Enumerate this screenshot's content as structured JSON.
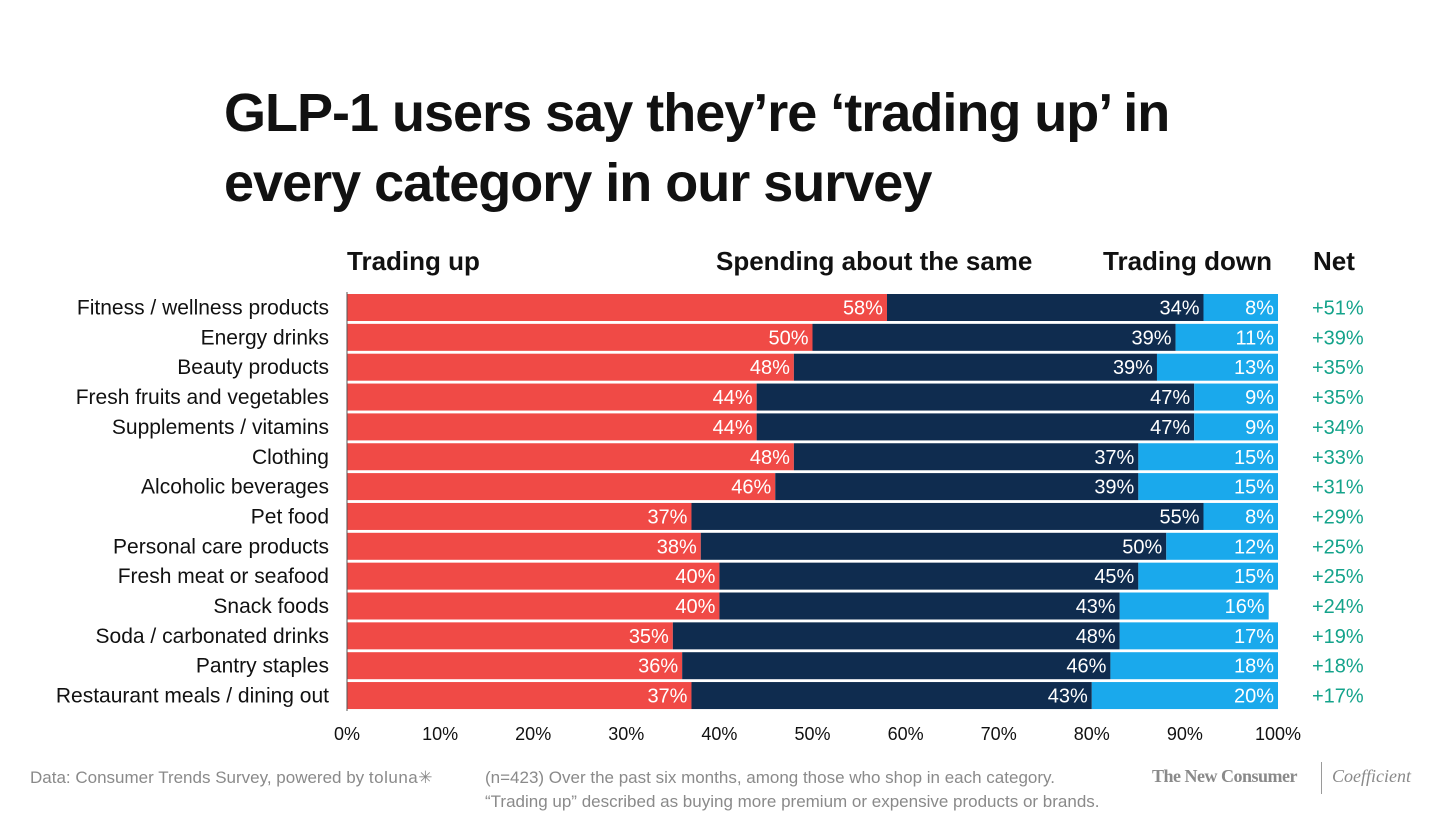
{
  "header": {
    "title_line1": "GLP-1 users say they’re ‘trading up’ in",
    "title_line2": "every category in our survey"
  },
  "columns": {
    "trading_up": "Trading up",
    "same": "Spending about the same",
    "trading_down": "Trading down",
    "net": "Net"
  },
  "colors": {
    "trading_up": "#f04a46",
    "same": "#0f2c4f",
    "trading_down": "#1aa9ec",
    "net": "#14a38b"
  },
  "chart_data": {
    "type": "bar",
    "orientation": "horizontal",
    "stacked": true,
    "normalized": true,
    "categories": [
      "Fitness / wellness products",
      "Energy drinks",
      "Beauty products",
      "Fresh fruits and vegetables",
      "Supplements / vitamins",
      "Clothing",
      "Alcoholic beverages",
      "Pet food",
      "Personal care products",
      "Fresh meat or seafood",
      "Snack foods",
      "Soda / carbonated drinks",
      "Pantry staples",
      "Restaurant meals / dining out"
    ],
    "series": [
      {
        "name": "Trading up",
        "values": [
          58,
          50,
          48,
          44,
          44,
          48,
          46,
          37,
          38,
          40,
          40,
          35,
          36,
          37
        ]
      },
      {
        "name": "Spending about the same",
        "values": [
          34,
          39,
          39,
          47,
          47,
          37,
          39,
          55,
          50,
          45,
          43,
          48,
          46,
          43
        ]
      },
      {
        "name": "Trading down",
        "values": [
          8,
          11,
          13,
          9,
          9,
          15,
          15,
          8,
          12,
          15,
          16,
          17,
          18,
          20
        ]
      }
    ],
    "net": [
      "+51%",
      "+39%",
      "+35%",
      "+35%",
      "+34%",
      "+33%",
      "+31%",
      "+29%",
      "+25%",
      "+25%",
      "+24%",
      "+19%",
      "+18%",
      "+17%"
    ],
    "xlim": [
      0,
      100
    ],
    "xticks": [
      "0%",
      "10%",
      "20%",
      "30%",
      "40%",
      "50%",
      "60%",
      "70%",
      "80%",
      "90%",
      "100%"
    ],
    "unit": "%"
  },
  "footer": {
    "source_prefix": "Data: Consumer Trends Survey, powered by ",
    "source_brand": "toluna✳",
    "note_line1": "(n=423) Over the past six months, among those who shop in each category.",
    "note_line2": "“Trading up” described as buying more premium or expensive products or brands.",
    "brand1": "The New Consumer",
    "brand2": "Coefficient"
  }
}
